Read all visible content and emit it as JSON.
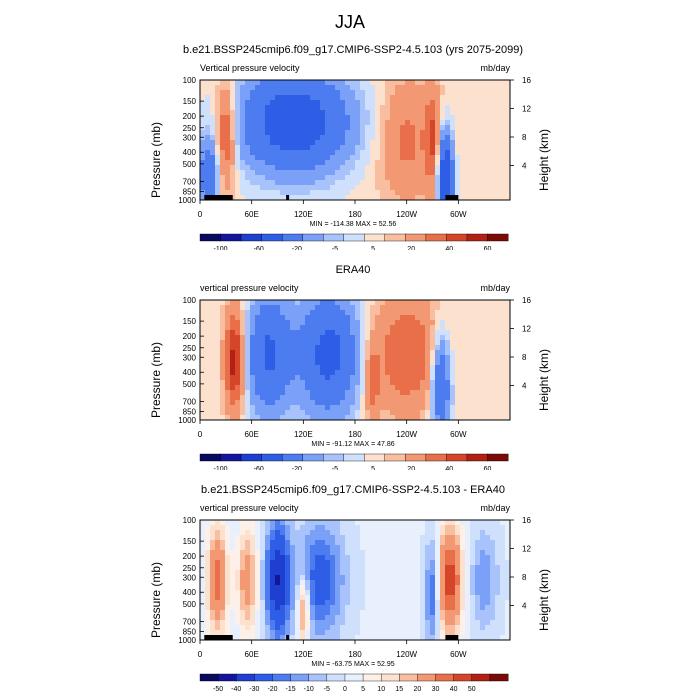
{
  "page": {
    "title": "JJA"
  },
  "chart_data": [
    {
      "type": "heatmap",
      "title": "b.e21.BSSP245cmip6.f09_g17.CMIP6-SSP2-4.5.103 (yrs 2075-2099)",
      "left_label": "Vertical pressure velocity",
      "right_label": "mb/day",
      "ylabel": "Pressure (mb)",
      "ylabel_right": "Height (km)",
      "stats": "MIN = -114.38   MAX = 52.56",
      "x_ticks": [
        "0",
        "60E",
        "120E",
        "180",
        "120W",
        "60W"
      ],
      "y_ticks": [
        "100",
        "150",
        "200",
        "250",
        "300",
        "400",
        "500",
        "700",
        "850",
        "1000"
      ],
      "y_ticks_right": [
        "16",
        "12",
        "8",
        "4"
      ],
      "colorbar_labels": [
        "-100",
        "-60",
        "-20",
        "-5",
        "5",
        "20",
        "40",
        "60"
      ],
      "min": -114.38,
      "max": 52.56
    },
    {
      "type": "heatmap",
      "title": "ERA40",
      "left_label": "vertical pressure velocity",
      "right_label": "mb/day",
      "ylabel": "Pressure (mb)",
      "ylabel_right": "Height (km)",
      "stats": "MIN = -91.12   MAX = 47.86",
      "x_ticks": [
        "0",
        "60E",
        "120E",
        "180",
        "120W",
        "60W"
      ],
      "y_ticks": [
        "100",
        "150",
        "200",
        "250",
        "300",
        "400",
        "500",
        "700",
        "850",
        "1000"
      ],
      "y_ticks_right": [
        "16",
        "12",
        "8",
        "4"
      ],
      "colorbar_labels": [
        "-100",
        "-60",
        "-20",
        "-5",
        "5",
        "20",
        "40",
        "60"
      ],
      "min": -91.12,
      "max": 47.86
    },
    {
      "type": "heatmap",
      "title": "b.e21.BSSP245cmip6.f09_g17.CMIP6-SSP2-4.5.103 - ERA40",
      "left_label": "vertical pressure velocity",
      "right_label": "mb/day",
      "ylabel": "Pressure (mb)",
      "ylabel_right": "Height (km)",
      "stats": "MIN = -63.75   MAX = 52.95",
      "x_ticks": [
        "0",
        "60E",
        "120E",
        "180",
        "120W",
        "60W"
      ],
      "y_ticks": [
        "100",
        "150",
        "200",
        "250",
        "300",
        "400",
        "500",
        "700",
        "850",
        "1000"
      ],
      "y_ticks_right": [
        "16",
        "12",
        "8",
        "4"
      ],
      "colorbar_labels": [
        "-50",
        "-40",
        "-30",
        "-20",
        "-15",
        "-10",
        "-5",
        "0",
        "5",
        "10",
        "15",
        "20",
        "30",
        "40",
        "50"
      ],
      "min": -63.75,
      "max": 52.95
    }
  ],
  "colors": {
    "bar1": [
      "#0a0a60",
      "#13169b",
      "#1f3fd0",
      "#2e5ee6",
      "#4d7cf0",
      "#7aa1f7",
      "#a8c3fb",
      "#cfe0fd",
      "#fde1cf",
      "#f8be9f",
      "#f29872",
      "#e86f4a",
      "#d5452a",
      "#b22113",
      "#7a0b07"
    ],
    "bar3": [
      "#0a0a60",
      "#13169b",
      "#1f3fd0",
      "#2e5ee6",
      "#4d7cf0",
      "#7aa1f7",
      "#a8c3fb",
      "#cfe0fd",
      "#e8f0fe",
      "#fdf0e8",
      "#fde1cf",
      "#f8be9f",
      "#f29872",
      "#e86f4a",
      "#d5452a",
      "#b22113",
      "#7a0b07"
    ]
  }
}
